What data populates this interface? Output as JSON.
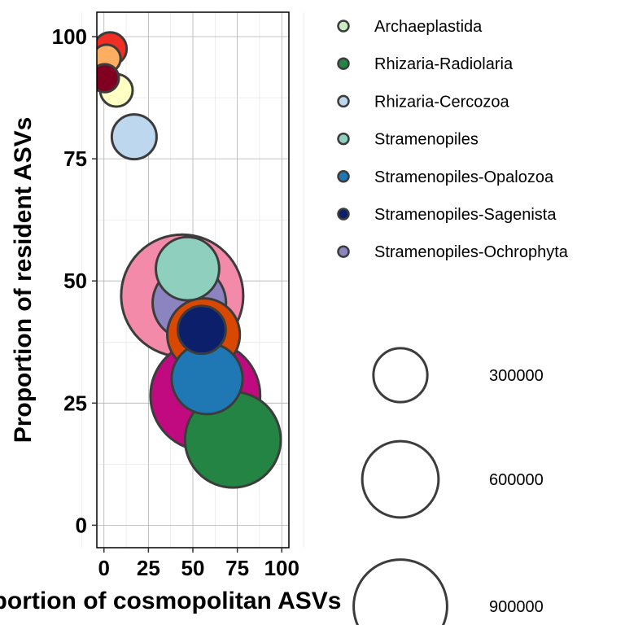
{
  "chart_data": {
    "type": "scatter",
    "xlabel": "Proportion of cosmopolitan ASVs",
    "ylabel": "Proportion of resident ASVs",
    "xlim": [
      -4,
      104
    ],
    "ylim": [
      -4.6,
      105
    ],
    "xticks": [
      0,
      25,
      50,
      75,
      100
    ],
    "yticks": [
      0,
      25,
      50,
      75,
      100
    ],
    "grid": true,
    "legend_placement": "right",
    "groups": [
      {
        "name": "Archaeplastida",
        "color": "#ccebc5"
      },
      {
        "name": "Rhizaria-Radiolaria",
        "color": "#238443"
      },
      {
        "name": "Rhizaria-Cercozoa",
        "color": "#bdd7ee"
      },
      {
        "name": "Stramenopiles",
        "color": "#8ed0bd"
      },
      {
        "name": "Stramenopiles-Opalozoa",
        "color": "#1f78b4"
      },
      {
        "name": "Stramenopiles-Sagenista",
        "color": "#0b1f6b"
      },
      {
        "name": "Stramenopiles-Ochrophyta",
        "color": "#8c84c0"
      }
    ],
    "size_legend": [
      300000,
      600000,
      900000
    ],
    "points": [
      {
        "x": 44,
        "y": 47,
        "size": 1300000,
        "color": "#f48aa9"
      },
      {
        "x": 57,
        "y": 26.5,
        "size": 1050000,
        "color": "#c10a7f"
      },
      {
        "x": 72.5,
        "y": 17.5,
        "size": 800000,
        "color": "#238443"
      },
      {
        "x": 56,
        "y": 39,
        "size": 460000,
        "color": "#d94801"
      },
      {
        "x": 47,
        "y": 52.5,
        "size": 350000,
        "color": "#8ed0bd"
      },
      {
        "x": 48,
        "y": 45.5,
        "size": 470000,
        "color": "#8c84c0"
      },
      {
        "x": 58,
        "y": 30,
        "size": 440000,
        "color": "#1f78b4"
      },
      {
        "x": 55,
        "y": 40,
        "size": 200000,
        "color": "#0b1f6b"
      },
      {
        "x": 17,
        "y": 79.5,
        "size": 175000,
        "color": "#bdd7ee"
      },
      {
        "x": 3.5,
        "y": 97.5,
        "size": 95000,
        "color": "#ef2f23"
      },
      {
        "x": 1.5,
        "y": 95.5,
        "size": 68000,
        "color": "#fdae61"
      },
      {
        "x": 7,
        "y": 89,
        "size": 92000,
        "color": "#ffffc4"
      },
      {
        "x": 0.5,
        "y": 91.5,
        "size": 68000,
        "color": "#7f0020"
      }
    ]
  }
}
